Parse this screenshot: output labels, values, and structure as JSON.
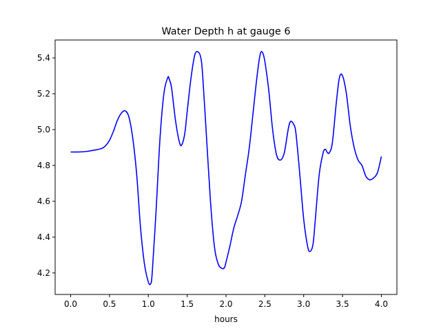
{
  "chart_data": {
    "type": "line",
    "title": "Water Depth h at gauge 6",
    "xlabel": "hours",
    "ylabel": "",
    "xlim": [
      -0.2,
      4.2
    ],
    "ylim": [
      4.08,
      5.5
    ],
    "xticks": [
      0.0,
      0.5,
      1.0,
      1.5,
      2.0,
      2.5,
      3.0,
      3.5,
      4.0
    ],
    "xtick_labels": [
      "0.0",
      "0.5",
      "1.0",
      "1.5",
      "2.0",
      "2.5",
      "3.0",
      "3.5",
      "4.0"
    ],
    "yticks": [
      4.2,
      4.4,
      4.6,
      4.8,
      5.0,
      5.2,
      5.4
    ],
    "ytick_labels": [
      "4.2",
      "4.4",
      "4.6",
      "4.8",
      "5.0",
      "5.2",
      "5.4"
    ],
    "grid": false,
    "series": [
      {
        "color": "#0000ff",
        "x": [
          0.0,
          0.1,
          0.2,
          0.3,
          0.4,
          0.45,
          0.5,
          0.55,
          0.6,
          0.65,
          0.7,
          0.75,
          0.8,
          0.85,
          0.9,
          0.95,
          1.0,
          1.03,
          1.05,
          1.1,
          1.15,
          1.2,
          1.25,
          1.27,
          1.3,
          1.35,
          1.4,
          1.43,
          1.47,
          1.5,
          1.55,
          1.6,
          1.65,
          1.68,
          1.7,
          1.75,
          1.8,
          1.85,
          1.9,
          1.95,
          1.98,
          2.0,
          2.05,
          2.1,
          2.15,
          2.2,
          2.25,
          2.3,
          2.35,
          2.4,
          2.44,
          2.47,
          2.5,
          2.55,
          2.6,
          2.65,
          2.7,
          2.75,
          2.8,
          2.83,
          2.87,
          2.9,
          2.95,
          3.0,
          3.05,
          3.08,
          3.12,
          3.15,
          3.2,
          3.25,
          3.28,
          3.3,
          3.33,
          3.37,
          3.42,
          3.46,
          3.5,
          3.55,
          3.6,
          3.65,
          3.7,
          3.75,
          3.8,
          3.85,
          3.9,
          3.95,
          4.0
        ],
        "values": [
          4.875,
          4.875,
          4.878,
          4.885,
          4.895,
          4.91,
          4.94,
          4.99,
          5.05,
          5.09,
          5.105,
          5.07,
          4.95,
          4.75,
          4.45,
          4.25,
          4.15,
          4.14,
          4.2,
          4.55,
          4.95,
          5.2,
          5.29,
          5.28,
          5.23,
          5.05,
          4.93,
          4.915,
          4.98,
          5.1,
          5.29,
          5.42,
          5.43,
          5.39,
          5.3,
          4.95,
          4.6,
          4.35,
          4.25,
          4.225,
          4.23,
          4.26,
          4.35,
          4.45,
          4.52,
          4.6,
          4.75,
          4.9,
          5.1,
          5.3,
          5.42,
          5.43,
          5.38,
          5.22,
          5.0,
          4.86,
          4.83,
          4.87,
          5.0,
          5.045,
          5.03,
          4.98,
          4.75,
          4.5,
          4.35,
          4.32,
          4.36,
          4.5,
          4.75,
          4.87,
          4.89,
          4.875,
          4.87,
          4.93,
          5.15,
          5.29,
          5.3,
          5.2,
          5.02,
          4.9,
          4.83,
          4.8,
          4.74,
          4.72,
          4.73,
          4.76,
          4.85
        ]
      }
    ]
  }
}
